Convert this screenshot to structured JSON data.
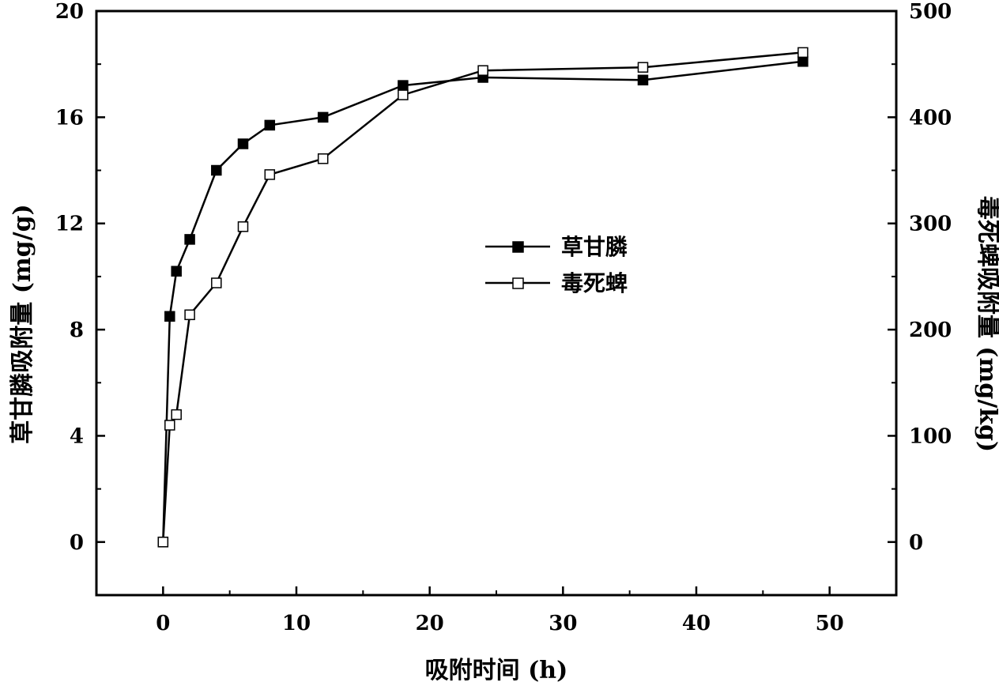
{
  "chart_data": {
    "type": "line",
    "xlabel": "吸附时间 (h)",
    "ylabel_left": "草甘膦吸附量 (mg/g)",
    "ylabel_right": "毒死蜱吸附量 (mg/kg)",
    "xlim": [
      -5,
      55
    ],
    "ylim_left": [
      -2,
      20
    ],
    "ylim_right": [
      -50,
      500
    ],
    "x_ticks": [
      0,
      10,
      20,
      30,
      40,
      50
    ],
    "y_ticks_left": [
      0,
      4,
      8,
      12,
      16,
      20
    ],
    "y_ticks_right": [
      0,
      100,
      200,
      300,
      400,
      500
    ],
    "grid": false,
    "legend_position": "center-right",
    "series": [
      {
        "name": "草甘膦",
        "axis": "left",
        "marker": "filled-square",
        "x": [
          0,
          0.5,
          1,
          2,
          4,
          6,
          8,
          12,
          18,
          24,
          36,
          48
        ],
        "y": [
          0,
          8.5,
          10.2,
          11.4,
          14.0,
          15.0,
          15.7,
          16.0,
          17.2,
          17.5,
          17.4,
          18.1
        ]
      },
      {
        "name": "毒死蜱",
        "axis": "right",
        "marker": "open-square",
        "x": [
          0,
          0.5,
          1,
          2,
          4,
          6,
          8,
          12,
          18,
          24,
          36,
          48
        ],
        "y": [
          0,
          110,
          120,
          214,
          244,
          297,
          346,
          361,
          421,
          444,
          447,
          461
        ]
      }
    ]
  }
}
